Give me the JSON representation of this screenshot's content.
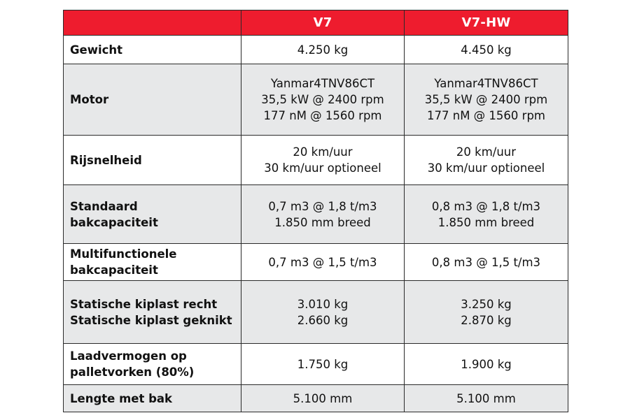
{
  "table": {
    "headers": [
      "",
      "V7",
      "V7-HW"
    ],
    "rows": [
      {
        "label": [
          "Gewicht"
        ],
        "v7": [
          "4.250 kg"
        ],
        "v7hw": [
          "4.450 kg"
        ]
      },
      {
        "label": [
          "Motor"
        ],
        "v7": [
          "Yanmar4TNV86CT",
          "35,5 kW @ 2400 rpm",
          "177 nM @ 1560 rpm"
        ],
        "v7hw": [
          "Yanmar4TNV86CT",
          "35,5 kW @ 2400 rpm",
          "177 nM @ 1560 rpm"
        ]
      },
      {
        "label": [
          "Rijsnelheid"
        ],
        "v7": [
          "20 km/uur",
          "30 km/uur optioneel"
        ],
        "v7hw": [
          "20 km/uur",
          "30 km/uur optioneel"
        ]
      },
      {
        "label": [
          "Standaard",
          "bakcapaciteit"
        ],
        "v7": [
          "0,7 m3 @ 1,8 t/m3",
          "1.850 mm breed"
        ],
        "v7hw": [
          "0,8 m3 @ 1,8 t/m3",
          "1.850 mm breed"
        ]
      },
      {
        "label": [
          "Multifunctionele",
          "bakcapaciteit"
        ],
        "v7": [
          "0,7 m3 @ 1,5 t/m3"
        ],
        "v7hw": [
          "0,8 m3 @ 1,5 t/m3"
        ]
      },
      {
        "label": [
          "Statische kiplast recht",
          "Statische kiplast geknikt"
        ],
        "v7": [
          "3.010 kg",
          "2.660 kg"
        ],
        "v7hw": [
          "3.250 kg",
          "2.870 kg"
        ]
      },
      {
        "label": [
          "Laadvermogen op",
          "palletvorken (80%)"
        ],
        "v7": [
          "1.750 kg"
        ],
        "v7hw": [
          "1.900 kg"
        ]
      },
      {
        "label": [
          "Lengte met bak"
        ],
        "v7": [
          "5.100 mm"
        ],
        "v7hw": [
          "5.100 mm"
        ]
      }
    ]
  },
  "colors": {
    "header_bg": "#ee1c2e",
    "header_text": "#ffffff",
    "row_grey": "#e7e8e9",
    "row_white": "#ffffff",
    "border": "#2a2a2a"
  }
}
